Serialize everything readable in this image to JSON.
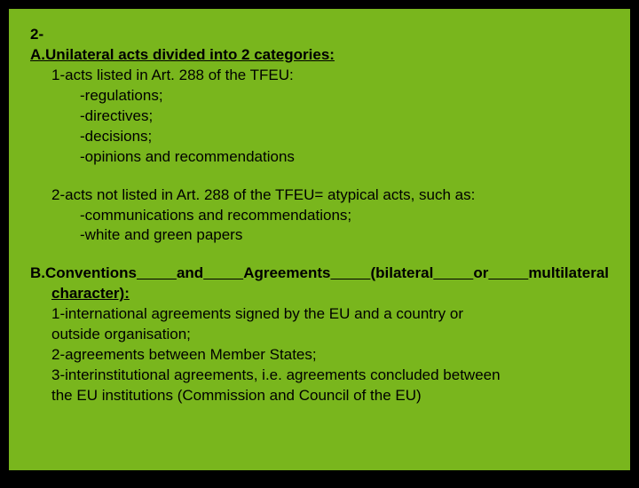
{
  "slide": {
    "background_color": "#79b61d",
    "text_color": "#000000",
    "font_family": "Arial",
    "font_size": 17
  },
  "content": {
    "line1": "2-",
    "headingA": "A.Unilateral acts divided into 2 categories:",
    "a1": "1-acts listed in Art. 288 of the TFEU:",
    "a1_items": [
      "-regulations;",
      "-directives;",
      "-decisions;",
      "-opinions and recommendations"
    ],
    "a2": "2-acts not listed in Art. 288 of the TFEU= atypical acts, such as:",
    "a2_items": [
      "-communications and recommendations;",
      "-white and green papers"
    ],
    "headingB_words": [
      "B.Conventions",
      "and",
      "Agreements",
      "(bilateral",
      "or",
      "multilateral"
    ],
    "headingB_line2": "character):",
    "b_items": [
      "1-international agreements signed by the EU and a country or",
      "outside organisation;",
      "2-agreements between Member States;",
      "3-interinstitutional agreements, i.e. agreements concluded between",
      "the EU institutions (Commission and Council of the EU)"
    ]
  }
}
